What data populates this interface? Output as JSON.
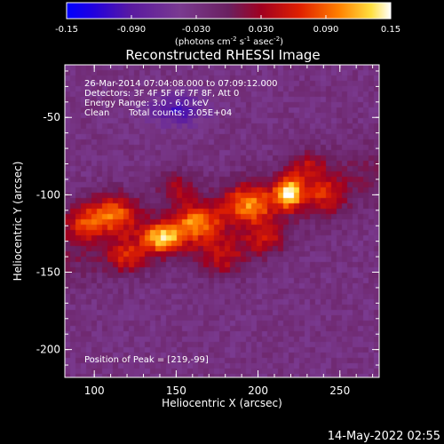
{
  "chart_data": {
    "type": "heatmap",
    "title": "Reconstructed RHESSI Image",
    "xlabel": "Heliocentric X (arcsec)",
    "ylabel": "Heliocentric Y (arcsec)",
    "xlim": [
      82,
      274
    ],
    "ylim": [
      -218,
      -16
    ],
    "x_ticks": [
      100,
      150,
      200,
      250
    ],
    "y_ticks": [
      -50,
      -100,
      -150,
      -200
    ],
    "colorbar": {
      "range": [
        -0.15,
        0.15
      ],
      "ticks": [
        "-0.15",
        "-0.090",
        "-0.030",
        "0.030",
        "0.090",
        "0.15"
      ],
      "label_prefix": "(photons cm",
      "label_sup1": "-2",
      "label_mid1": " s",
      "label_sup2": "-1",
      "label_mid2": " asec",
      "label_sup3": "-2",
      "label_suffix": ")"
    },
    "annotations": {
      "line1": "26-Mar-2014 07:04:08.000 to 07:09:12.000",
      "line2": "Detectors: 3F 4F 5F 6F 7F 8F, Att 0",
      "line3": "Energy Range: 3.0 - 6.0 keV",
      "line4_method": "Clean",
      "line4_counts": "Total counts: 3.05E+04",
      "peak": "Position of Peak = [219,-99]"
    },
    "peak_position": [
      219,
      -99
    ],
    "sources": [
      {
        "x": 219,
        "y": -99,
        "value": 0.15,
        "sx": 6,
        "sy": 7
      },
      {
        "x": 142,
        "y": -128,
        "value": 0.14,
        "sx": 9,
        "sy": 7
      },
      {
        "x": 112,
        "y": -112,
        "value": 0.1,
        "sx": 10,
        "sy": 9
      },
      {
        "x": 163,
        "y": -118,
        "value": 0.1,
        "sx": 10,
        "sy": 8
      },
      {
        "x": 195,
        "y": -106,
        "value": 0.1,
        "sx": 11,
        "sy": 9
      },
      {
        "x": 93,
        "y": -118,
        "value": 0.07,
        "sx": 9,
        "sy": 9
      },
      {
        "x": 178,
        "y": -140,
        "value": 0.06,
        "sx": 12,
        "sy": 9
      },
      {
        "x": 240,
        "y": -100,
        "value": 0.05,
        "sx": 9,
        "sy": 9
      },
      {
        "x": 120,
        "y": -140,
        "value": 0.06,
        "sx": 9,
        "sy": 7
      },
      {
        "x": 205,
        "y": -128,
        "value": 0.05,
        "sx": 10,
        "sy": 8
      },
      {
        "x": 150,
        "y": -95,
        "value": 0.04,
        "sx": 8,
        "sy": 7
      },
      {
        "x": 230,
        "y": -82,
        "value": 0.04,
        "sx": 8,
        "sy": 7
      }
    ],
    "background_value": -0.03,
    "min_region": {
      "x": 150,
      "y": -45,
      "value": -0.1
    }
  },
  "timestamp": "14-May-2022 02:55"
}
